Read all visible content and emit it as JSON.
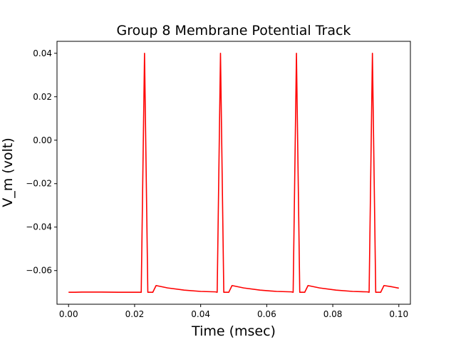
{
  "chart_data": {
    "type": "line",
    "title": "Group 8 Membrane Potential Track",
    "xlabel": "Time (msec)",
    "ylabel": "V_m (volt)",
    "xlim": [
      -0.0035,
      0.1035
    ],
    "ylim": [
      -0.0755,
      0.0455
    ],
    "xticks": [
      0.0,
      0.02,
      0.04,
      0.06,
      0.08,
      0.1
    ],
    "xtick_labels": [
      "0.00",
      "0.02",
      "0.04",
      "0.06",
      "0.08",
      "0.10"
    ],
    "yticks": [
      -0.06,
      -0.04,
      -0.02,
      0.0,
      0.02,
      0.04
    ],
    "ytick_labels": [
      "−0.06",
      "−0.04",
      "−0.02",
      "0.00",
      "0.02",
      "0.04"
    ],
    "grid": false,
    "series": [
      {
        "color": "#ff0000",
        "x": [
          0.0,
          0.002,
          0.004,
          0.006,
          0.01,
          0.015,
          0.0215,
          0.022,
          0.023,
          0.024,
          0.0255,
          0.0265,
          0.03,
          0.035,
          0.04,
          0.0445,
          0.045,
          0.046,
          0.047,
          0.0485,
          0.0495,
          0.053,
          0.058,
          0.063,
          0.0675,
          0.068,
          0.069,
          0.07,
          0.0715,
          0.0725,
          0.076,
          0.081,
          0.086,
          0.0905,
          0.091,
          0.092,
          0.093,
          0.0945,
          0.0955,
          0.098,
          0.1
        ],
        "y": [
          -0.07,
          -0.07,
          -0.0699,
          -0.0699,
          -0.0699,
          -0.07,
          -0.07,
          -0.07,
          0.04,
          -0.07,
          -0.07,
          -0.0669,
          -0.068,
          -0.069,
          -0.0696,
          -0.0698,
          -0.07,
          0.04,
          -0.07,
          -0.07,
          -0.0669,
          -0.068,
          -0.069,
          -0.0696,
          -0.0698,
          -0.07,
          0.04,
          -0.07,
          -0.07,
          -0.0669,
          -0.068,
          -0.069,
          -0.0696,
          -0.0698,
          -0.07,
          0.04,
          -0.07,
          -0.07,
          -0.0669,
          -0.0675,
          -0.0681
        ]
      }
    ]
  }
}
